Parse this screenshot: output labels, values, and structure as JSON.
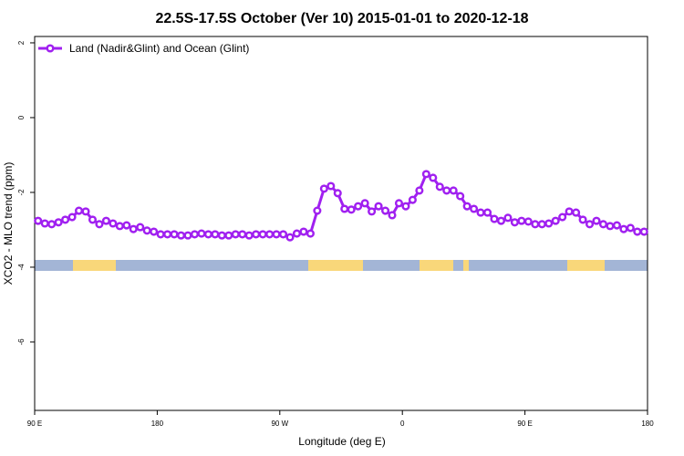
{
  "chart_data": {
    "type": "line",
    "title": "22.5S-17.5S October (Ver 10)   2015-01-01 to 2020-12-18",
    "xlabel": "Longitude (deg E)",
    "ylabel": "XCO2 - MLO trend (ppm)",
    "xlim": [
      90,
      540
    ],
    "xticks": [
      {
        "value": 90,
        "label": "90 E"
      },
      180,
      {
        "value": 270,
        "label": "90 W"
      },
      {
        "value": 360,
        "label": "0"
      },
      {
        "value": 450,
        "label": "90 E"
      },
      {
        "value": 540,
        "label": "180"
      }
    ],
    "ylim": [
      -7.83,
      2.17
    ],
    "yticks": [
      2,
      0,
      -2,
      -4,
      -6
    ],
    "legend": "top-left",
    "series": [
      {
        "name": "Land (Nadir&Glint) and Ocean (Glint)",
        "color": "#a020f0",
        "x": [
          92.5,
          97.5,
          102.5,
          107.5,
          112.5,
          117.5,
          122.5,
          127.5,
          132.5,
          137.5,
          142.5,
          147.5,
          152.5,
          157.5,
          162.5,
          167.5,
          172.5,
          177.5,
          182.5,
          187.5,
          192.5,
          197.5,
          202.5,
          207.5,
          212.5,
          217.5,
          222.5,
          227.5,
          232.5,
          237.5,
          242.5,
          247.5,
          252.5,
          257.5,
          262.5,
          267.5,
          272.5,
          277.5,
          282.5,
          287.5,
          292.5,
          297.5,
          302.5,
          307.5,
          312.5,
          317.5,
          322.5,
          327.5,
          332.5,
          337.5,
          342.5,
          347.5,
          352.5,
          357.5,
          362.5,
          367.5,
          372.5,
          377.5,
          382.5,
          387.5,
          392.5,
          397.5,
          402.5,
          407.5,
          412.5,
          417.5,
          422.5,
          427.5,
          432.5,
          437.5,
          442.5,
          447.5,
          452.5,
          457.5,
          462.5,
          467.5,
          472.5,
          477.5,
          482.5,
          487.5,
          492.5,
          497.5,
          502.5,
          507.5,
          512.5,
          517.5,
          522.5,
          527.5,
          532.5,
          537.5
        ],
        "values": [
          -2.76,
          -2.83,
          -2.85,
          -2.8,
          -2.73,
          -2.66,
          -2.49,
          -2.51,
          -2.73,
          -2.85,
          -2.76,
          -2.83,
          -2.9,
          -2.88,
          -2.98,
          -2.93,
          -3.02,
          -3.05,
          -3.12,
          -3.12,
          -3.12,
          -3.15,
          -3.15,
          -3.12,
          -3.1,
          -3.12,
          -3.12,
          -3.15,
          -3.15,
          -3.12,
          -3.12,
          -3.15,
          -3.12,
          -3.12,
          -3.12,
          -3.12,
          -3.12,
          -3.2,
          -3.1,
          -3.05,
          -3.1,
          -2.49,
          -1.9,
          -1.83,
          -2.02,
          -2.44,
          -2.46,
          -2.37,
          -2.29,
          -2.51,
          -2.37,
          -2.49,
          -2.61,
          -2.29,
          -2.37,
          -2.2,
          -1.95,
          -1.51,
          -1.61,
          -1.85,
          -1.95,
          -1.95,
          -2.1,
          -2.37,
          -2.44,
          -2.54,
          -2.54,
          -2.71,
          -2.76,
          -2.68,
          -2.8,
          -2.76,
          -2.78,
          -2.85,
          -2.85,
          -2.83,
          -2.76,
          -2.66,
          -2.51,
          -2.54,
          -2.73,
          -2.85,
          -2.76,
          -2.85,
          -2.9,
          -2.88,
          -2.98,
          -2.95,
          -3.05,
          -3.05
        ]
      }
    ]
  }
}
